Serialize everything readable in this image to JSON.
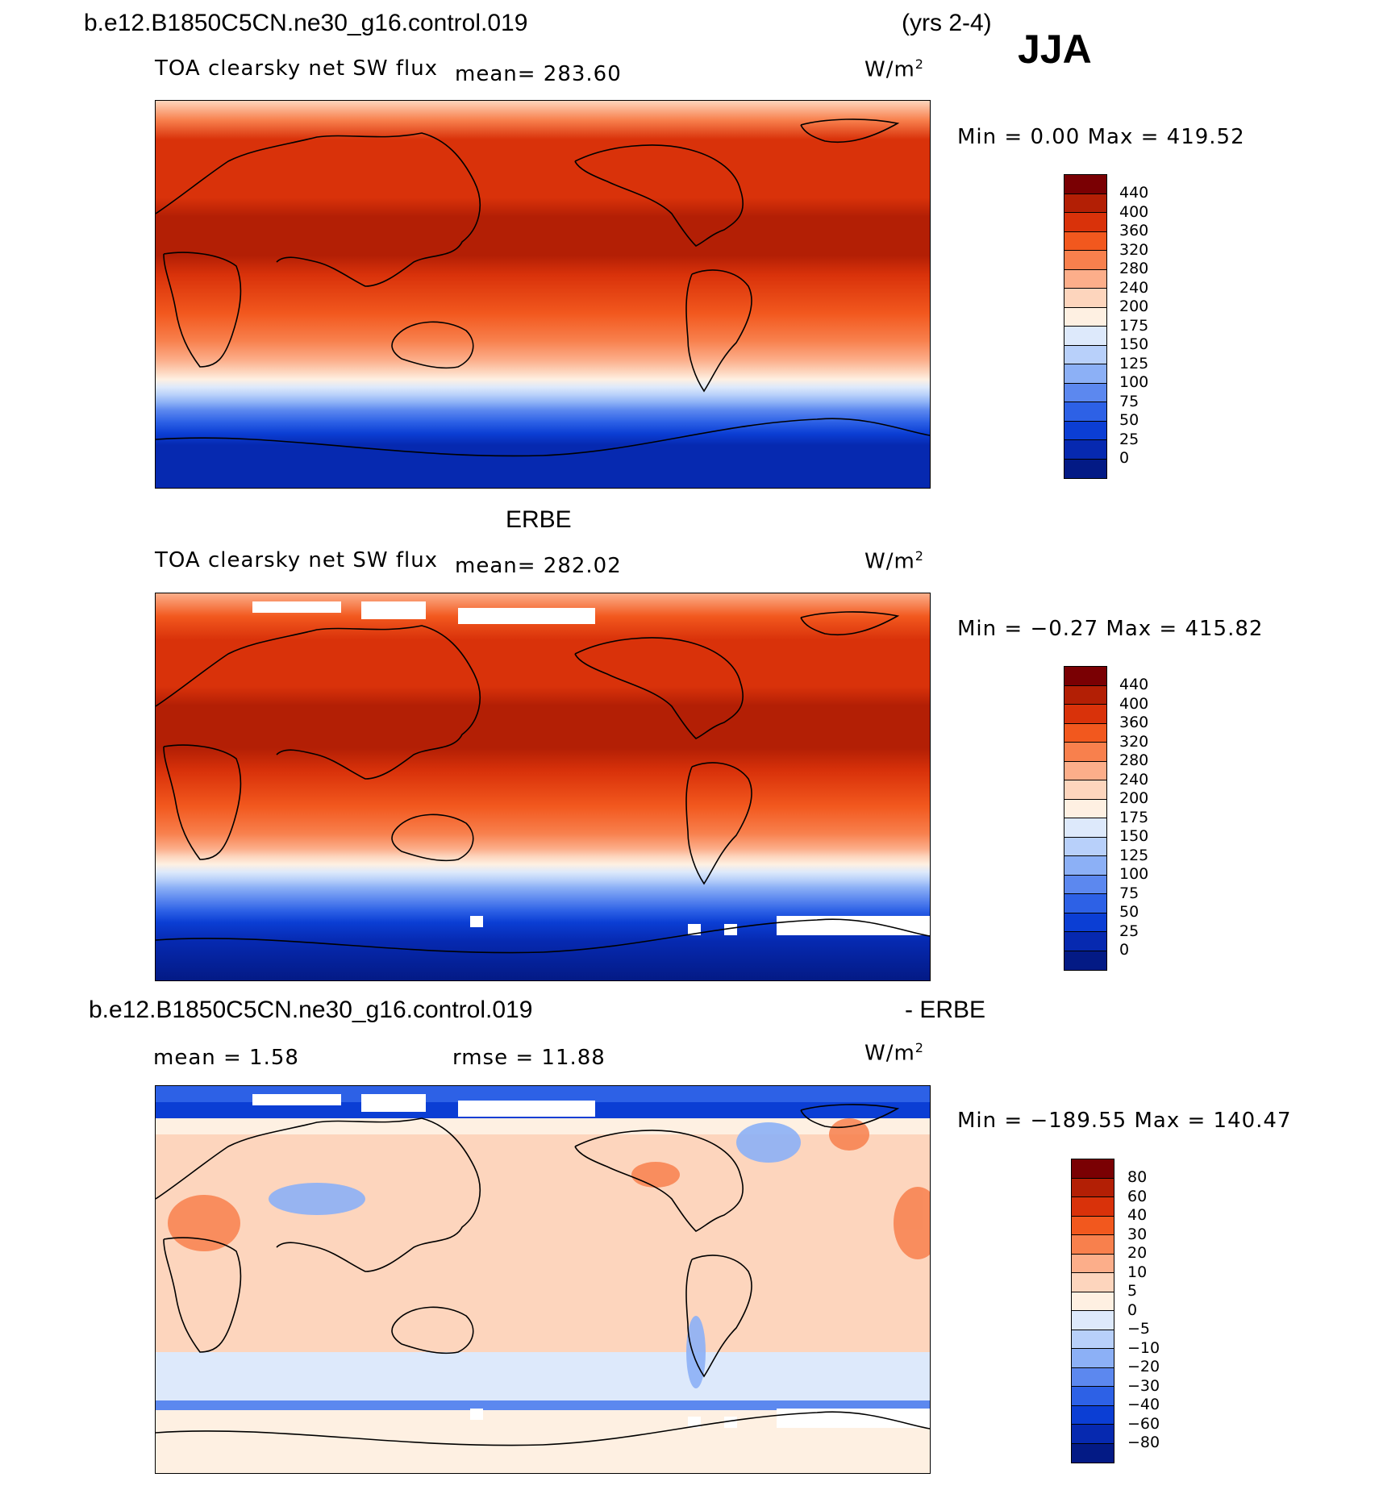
{
  "header": {
    "case_name": "b.e12.B1850C5CN.ne30_g16.control.019",
    "years": "(yrs 2-4)",
    "season": "JJA"
  },
  "panels": [
    {
      "id": "model",
      "title": "",
      "variable": "TOA clearsky net SW flux",
      "mean_label": "mean=  283.60",
      "units": "W/m",
      "units_sup": "2",
      "minmax": "Min =    0.00  Max =  419.52",
      "colorbar_labels": [
        "440",
        "400",
        "360",
        "320",
        "280",
        "240",
        "200",
        "175",
        "150",
        "125",
        "100",
        "75",
        "50",
        "25",
        "0"
      ],
      "colors": [
        "#7a0003",
        "#b31f05",
        "#d9320a",
        "#f2581e",
        "#f8804d",
        "#fcae8a",
        "#fdd5bd",
        "#fef0e2",
        "#dde9fb",
        "#b8d0fa",
        "#8cb0f6",
        "#5c88ef",
        "#2d61e6",
        "#0b3ed4",
        "#0629b0",
        "#031a85"
      ]
    },
    {
      "id": "obs",
      "title": "ERBE",
      "variable": "TOA clearsky net SW flux",
      "mean_label": "mean=  282.02",
      "units": "W/m",
      "units_sup": "2",
      "minmax": "Min =  −0.27  Max =  415.82",
      "colorbar_labels": [
        "440",
        "400",
        "360",
        "320",
        "280",
        "240",
        "200",
        "175",
        "150",
        "125",
        "100",
        "75",
        "50",
        "25",
        "0"
      ],
      "colors": [
        "#7a0003",
        "#b31f05",
        "#d9320a",
        "#f2581e",
        "#f8804d",
        "#fcae8a",
        "#fdd5bd",
        "#fef0e2",
        "#dde9fb",
        "#b8d0fa",
        "#8cb0f6",
        "#5c88ef",
        "#2d61e6",
        "#0b3ed4",
        "#0629b0",
        "#031a85"
      ]
    },
    {
      "id": "diff",
      "title_left": "b.e12.B1850C5CN.ne30_g16.control.019",
      "title_right": "- ERBE",
      "mean_label": "mean =     1.58",
      "rmse_label": "rmse =    11.88",
      "units": "W/m",
      "units_sup": "2",
      "minmax": "Min = −189.55  Max =  140.47",
      "colorbar_labels": [
        "80",
        "60",
        "40",
        "30",
        "20",
        "10",
        "5",
        "0",
        "−5",
        "−10",
        "−20",
        "−30",
        "−40",
        "−60",
        "−80"
      ],
      "colors": [
        "#7a0003",
        "#b31f05",
        "#d9320a",
        "#f2581e",
        "#f8804d",
        "#fcae8a",
        "#fdd5bd",
        "#fef0e2",
        "#dde9fb",
        "#b8d0fa",
        "#8cb0f6",
        "#5c88ef",
        "#2d61e6",
        "#0b3ed4",
        "#0629b0",
        "#031a85"
      ]
    }
  ]
}
